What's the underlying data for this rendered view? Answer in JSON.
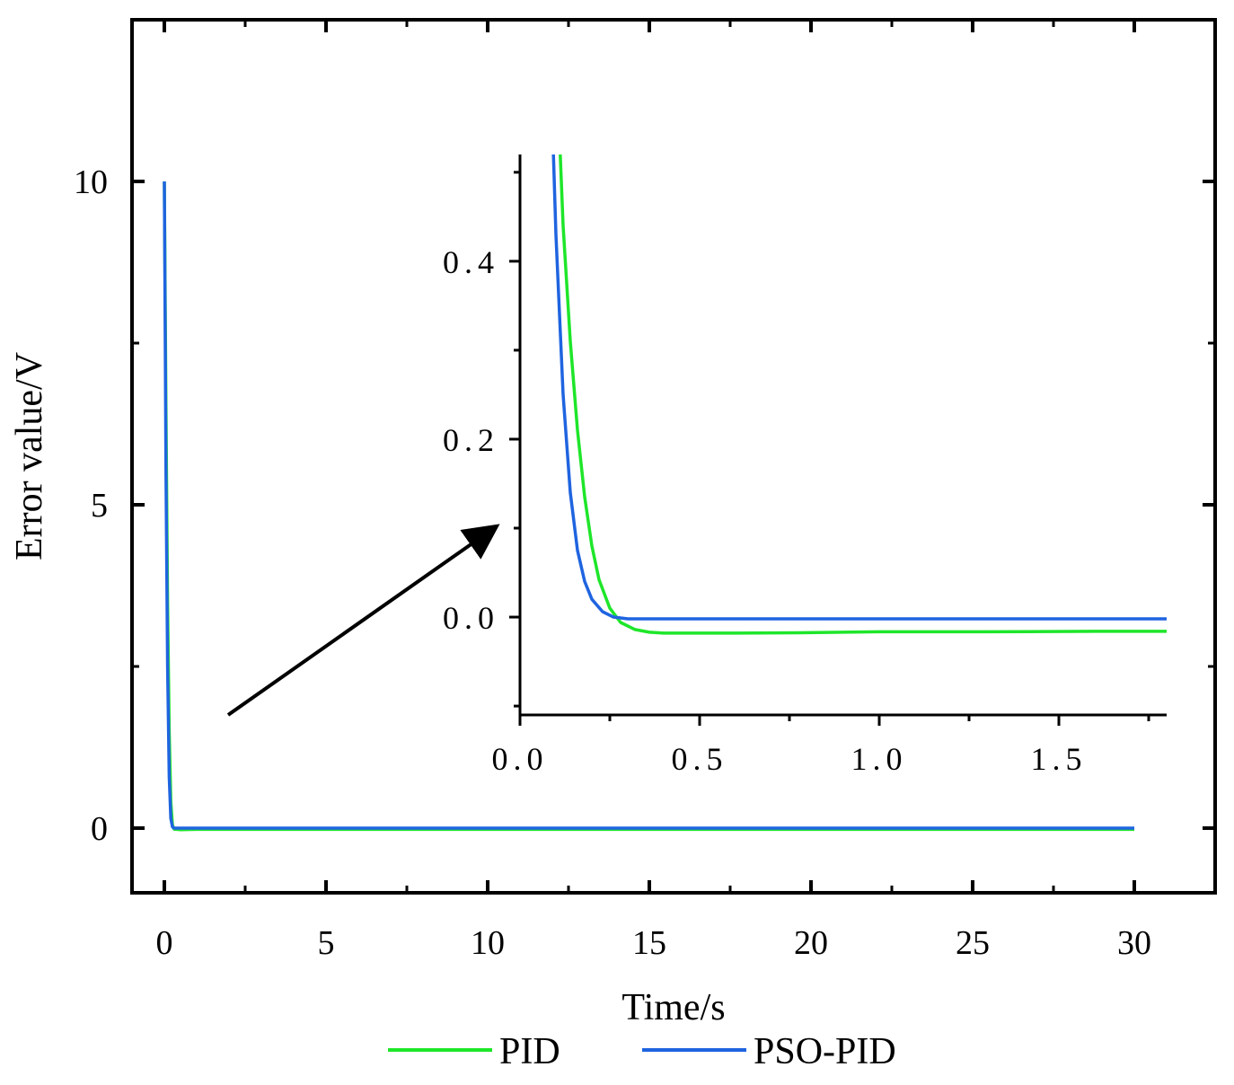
{
  "chart_data": [
    {
      "type": "line",
      "name": "main",
      "title": "",
      "xlabel": "Time/s",
      "ylabel": "Error value/V",
      "xlim": [
        -1,
        32.5
      ],
      "ylim": [
        -1,
        12.5
      ],
      "xticks": [
        0,
        5,
        10,
        15,
        20,
        25,
        30
      ],
      "xtick_labels": [
        "0",
        "5",
        "10",
        "15",
        "20",
        "25",
        "30"
      ],
      "yticks": [
        0,
        5,
        10
      ],
      "ytick_labels": [
        "0",
        "5",
        "10"
      ],
      "grid": false,
      "series": [
        {
          "name": "PID",
          "color": "#1ee62a",
          "x": [
            0,
            0.05,
            0.1,
            0.15,
            0.2,
            0.25,
            0.3,
            0.5,
            1,
            5,
            10,
            15,
            20,
            25,
            30
          ],
          "y": [
            10,
            6.5,
            3.5,
            1.5,
            0.4,
            0.05,
            -0.015,
            -0.025,
            -0.02,
            -0.02,
            -0.02,
            -0.02,
            -0.02,
            -0.02,
            -0.02
          ]
        },
        {
          "name": "PSO-PID",
          "color": "#1f64e0",
          "x": [
            0,
            0.05,
            0.1,
            0.15,
            0.2,
            0.25,
            0.3,
            0.5,
            1,
            5,
            10,
            15,
            20,
            25,
            30
          ],
          "y": [
            10,
            5.5,
            2.5,
            0.8,
            0.15,
            0.02,
            0.0,
            0.0,
            0.0,
            0.0,
            0.0,
            0.0,
            0.0,
            0.0,
            0.0
          ]
        }
      ]
    },
    {
      "type": "line",
      "name": "inset",
      "title": "",
      "xlabel": "",
      "ylabel": "",
      "xlim": [
        0,
        1.8
      ],
      "ylim": [
        -0.11,
        0.52
      ],
      "xticks": [
        0,
        0.5,
        1.0,
        1.5
      ],
      "xtick_labels": [
        "0.0",
        "0.5",
        "1.0",
        "1.5"
      ],
      "yticks": [
        0,
        0.2,
        0.4
      ],
      "ytick_labels": [
        "0.0",
        "0.2",
        "0.4"
      ],
      "grid": false,
      "series": [
        {
          "name": "PID",
          "color": "#1ee62a",
          "x": [
            0.112,
            0.12,
            0.14,
            0.16,
            0.18,
            0.2,
            0.22,
            0.25,
            0.28,
            0.32,
            0.36,
            0.4,
            0.5,
            0.6,
            0.8,
            1.0,
            1.3,
            1.6,
            1.8
          ],
          "y": [
            0.52,
            0.44,
            0.31,
            0.21,
            0.135,
            0.08,
            0.042,
            0.01,
            -0.006,
            -0.014,
            -0.017,
            -0.018,
            -0.018,
            -0.018,
            -0.0175,
            -0.0165,
            -0.0165,
            -0.016,
            -0.016
          ]
        },
        {
          "name": "PSO-PID",
          "color": "#1f64e0",
          "x": [
            0.093,
            0.1,
            0.12,
            0.14,
            0.16,
            0.18,
            0.2,
            0.23,
            0.26,
            0.3,
            0.35,
            0.4,
            0.6,
            1.0,
            1.5,
            1.8
          ],
          "y": [
            0.52,
            0.43,
            0.25,
            0.14,
            0.075,
            0.04,
            0.02,
            0.006,
            0.0,
            -0.002,
            -0.002,
            -0.002,
            -0.002,
            -0.002,
            -0.002,
            -0.002
          ]
        }
      ]
    }
  ],
  "legend": {
    "placement": "bottom-center",
    "entries": [
      {
        "label": "PID",
        "color": "#1ee62a"
      },
      {
        "label": "PSO-PID",
        "color": "#1f64e0"
      }
    ]
  },
  "annotation": {
    "type": "arrow",
    "meaning": "zoomed view of initial transient"
  }
}
